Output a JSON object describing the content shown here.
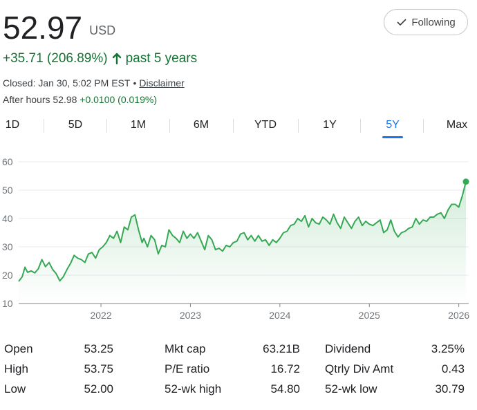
{
  "quote": {
    "price": "52.97",
    "currency": "USD",
    "change_text": "+35.71 (206.89%)",
    "period_text": "past 5 years",
    "closed_text": "Closed: Jan 30, 5:02 PM EST",
    "disclaimer_label": "Disclaimer",
    "after_hours_label": "After hours 52.98",
    "after_hours_change": "+0.0100 (0.019%)",
    "up_color": "#137333"
  },
  "follow_button": {
    "label": "Following",
    "icon": "check-icon"
  },
  "range_tabs": [
    {
      "label": "1D"
    },
    {
      "label": "5D"
    },
    {
      "label": "1M"
    },
    {
      "label": "6M"
    },
    {
      "label": "YTD"
    },
    {
      "label": "1Y"
    },
    {
      "label": "5Y",
      "active": true
    },
    {
      "label": "Max"
    }
  ],
  "chart_data": {
    "type": "line",
    "y_ticks": [
      "60",
      "50",
      "40",
      "30",
      "20",
      "10"
    ],
    "ylim": [
      10,
      60
    ],
    "x_ticks": [
      "2022",
      "2023",
      "2024",
      "2025",
      "2026"
    ],
    "xlim": [
      2021.08,
      2026.08
    ],
    "grid": "horizontal",
    "line_color": "#34a853",
    "series": [
      {
        "x": [
          2021.08,
          2021.12,
          2021.15,
          2021.18,
          2021.22,
          2021.26,
          2021.3,
          2021.34,
          2021.38,
          2021.42,
          2021.46,
          2021.5,
          2021.54,
          2021.58,
          2021.62,
          2021.66,
          2021.7,
          2021.74,
          2021.78,
          2021.82,
          2021.86,
          2021.9,
          2021.94,
          2021.98,
          2022.02,
          2022.06,
          2022.1,
          2022.14,
          2022.18,
          2022.22,
          2022.26,
          2022.3,
          2022.34,
          2022.38,
          2022.42,
          2022.46,
          2022.48,
          2022.52,
          2022.56,
          2022.6,
          2022.64,
          2022.68,
          2022.72,
          2022.76,
          2022.8,
          2022.84,
          2022.88,
          2022.92,
          2022.96,
          2023.0,
          2023.04,
          2023.08,
          2023.12,
          2023.16,
          2023.2,
          2023.24,
          2023.28,
          2023.32,
          2023.36,
          2023.4,
          2023.44,
          2023.48,
          2023.52,
          2023.56,
          2023.6,
          2023.64,
          2023.68,
          2023.72,
          2023.76,
          2023.8,
          2023.84,
          2023.88,
          2023.92,
          2023.96,
          2024.0,
          2024.04,
          2024.08,
          2024.12,
          2024.16,
          2024.2,
          2024.24,
          2024.28,
          2024.32,
          2024.36,
          2024.4,
          2024.44,
          2024.48,
          2024.52,
          2024.56,
          2024.6,
          2024.64,
          2024.68,
          2024.72,
          2024.76,
          2024.8,
          2024.84,
          2024.88,
          2024.92,
          2024.96,
          2025.0,
          2025.04,
          2025.08,
          2025.12,
          2025.16,
          2025.2,
          2025.24,
          2025.28,
          2025.32,
          2025.36,
          2025.4,
          2025.44,
          2025.48,
          2025.52,
          2025.56,
          2025.6,
          2025.64,
          2025.68,
          2025.72,
          2025.76,
          2025.8,
          2025.84,
          2025.88,
          2025.92,
          2025.96,
          2026.0,
          2026.04,
          2026.08
        ],
        "y": [
          17.8,
          19.5,
          22.8,
          21.0,
          21.5,
          20.8,
          22.3,
          25.5,
          23.0,
          24.5,
          22.0,
          20.5,
          18.0,
          19.5,
          22.0,
          24.2,
          27.0,
          26.0,
          25.5,
          24.5,
          27.5,
          28.0,
          26.0,
          29.0,
          30.0,
          31.5,
          34.0,
          33.0,
          35.5,
          31.5,
          37.0,
          36.0,
          40.5,
          41.3,
          36.0,
          31.5,
          33.0,
          30.0,
          34.0,
          32.5,
          27.5,
          30.5,
          30.0,
          36.0,
          34.0,
          33.0,
          31.5,
          35.5,
          33.0,
          34.5,
          33.0,
          35.0,
          32.0,
          29.0,
          34.0,
          32.5,
          29.0,
          29.5,
          28.5,
          30.5,
          30.0,
          31.5,
          32.0,
          34.5,
          35.0,
          32.5,
          34.0,
          32.0,
          34.0,
          32.0,
          32.5,
          30.5,
          32.5,
          31.5,
          33.0,
          35.0,
          35.5,
          37.5,
          38.0,
          40.0,
          39.0,
          41.0,
          37.0,
          40.0,
          38.5,
          38.0,
          40.5,
          39.5,
          38.0,
          41.5,
          38.5,
          36.5,
          40.5,
          38.5,
          36.5,
          39.0,
          40.5,
          37.5,
          39.0,
          38.0,
          37.5,
          38.5,
          39.5,
          35.0,
          36.0,
          39.5,
          35.5,
          33.5,
          35.0,
          35.5,
          36.5,
          37.0,
          40.0,
          38.0,
          39.5,
          39.0,
          40.5,
          40.5,
          41.5,
          42.0,
          40.0,
          43.0,
          45.0,
          45.0,
          44.0,
          48.0,
          53.0
        ]
      }
    ]
  },
  "stats": [
    {
      "label": "Open",
      "value": "53.25"
    },
    {
      "label": "High",
      "value": "53.75"
    },
    {
      "label": "Low",
      "value": "52.00"
    },
    {
      "label": "Mkt cap",
      "value": "63.21B"
    },
    {
      "label": "P/E ratio",
      "value": "16.72"
    },
    {
      "label": "52-wk high",
      "value": "54.80"
    },
    {
      "label": "Dividend",
      "value": "3.25%"
    },
    {
      "label": "Qtrly Div Amt",
      "value": "0.43"
    },
    {
      "label": "52-wk low",
      "value": "30.79"
    }
  ]
}
